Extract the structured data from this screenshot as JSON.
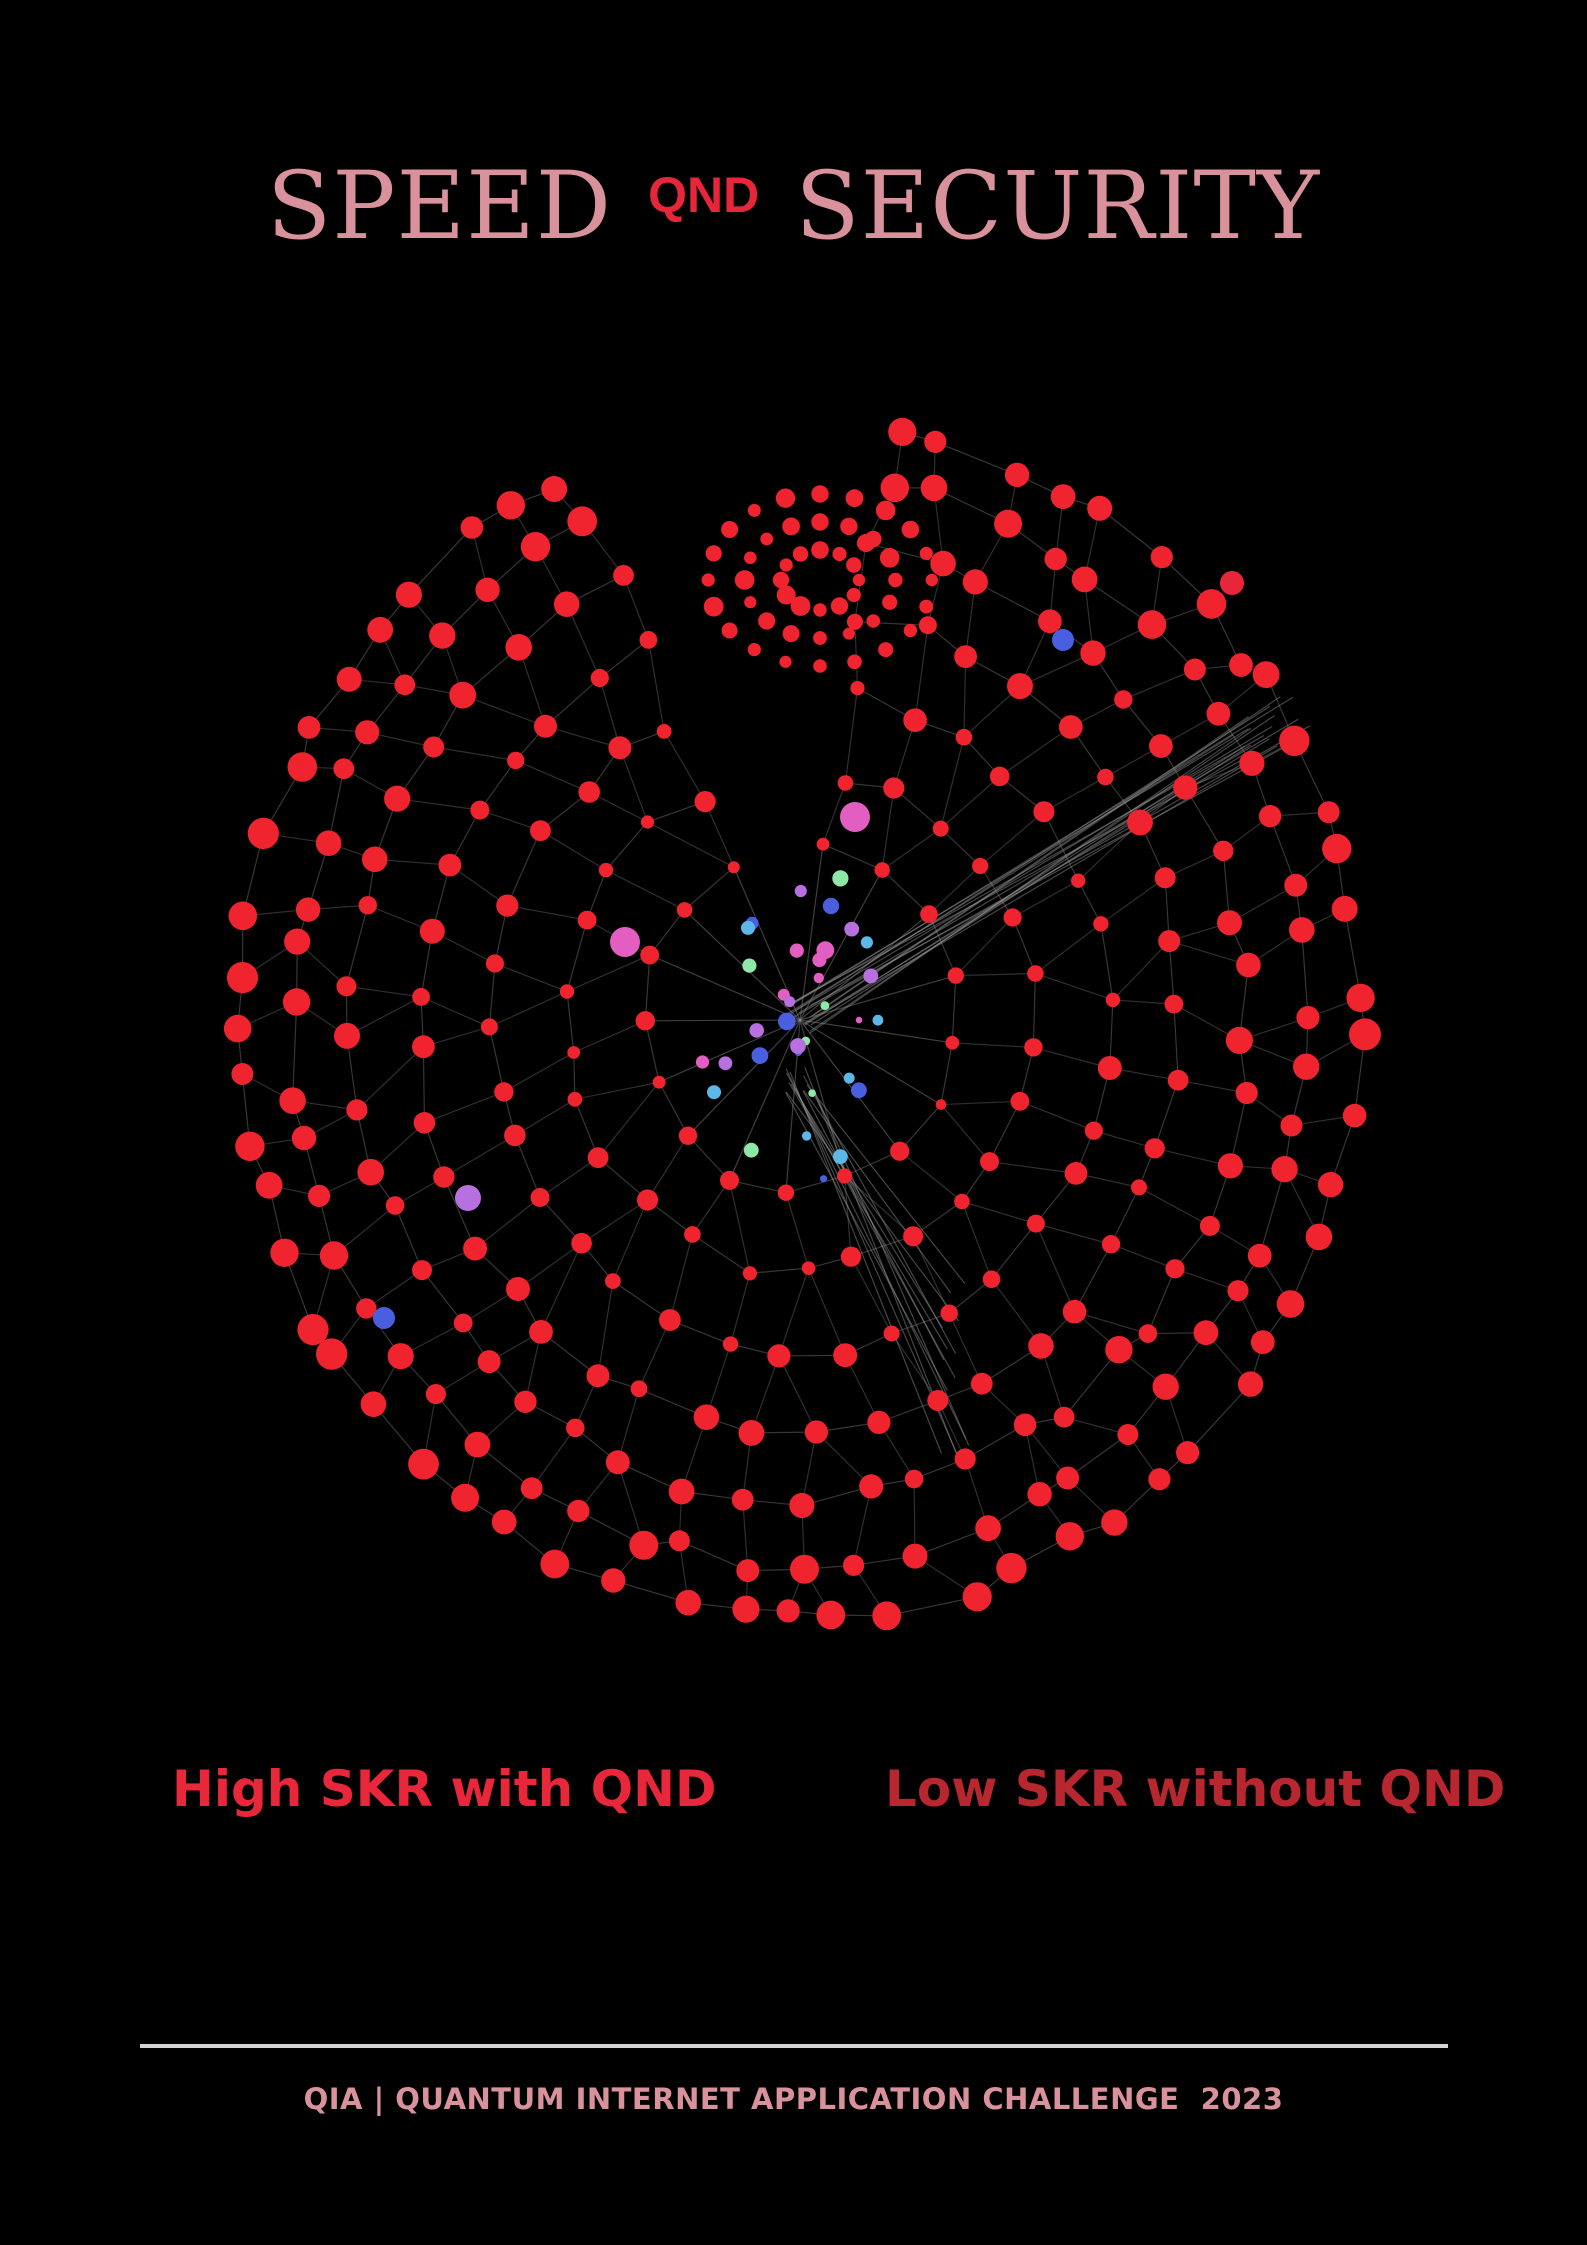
{
  "title": {
    "word_left": "SPEED",
    "conjunction": "QND",
    "word_right": "SECURITY"
  },
  "captions": {
    "left": "High SKR with QND",
    "right": "Low SKR without QND"
  },
  "footer": {
    "text": "QIA | QUANTUM INTERNET APPLICATION CHALLENGE  2023"
  },
  "colors": {
    "background": "#000000",
    "title": "#d9929b",
    "accent": "#e8263a",
    "node": "#f0242e",
    "edge": "#9a9a9a"
  },
  "illustration": {
    "type": "network-graph",
    "node_colors": [
      "red",
      "pink",
      "purple",
      "blue",
      "cyan",
      "green"
    ]
  }
}
